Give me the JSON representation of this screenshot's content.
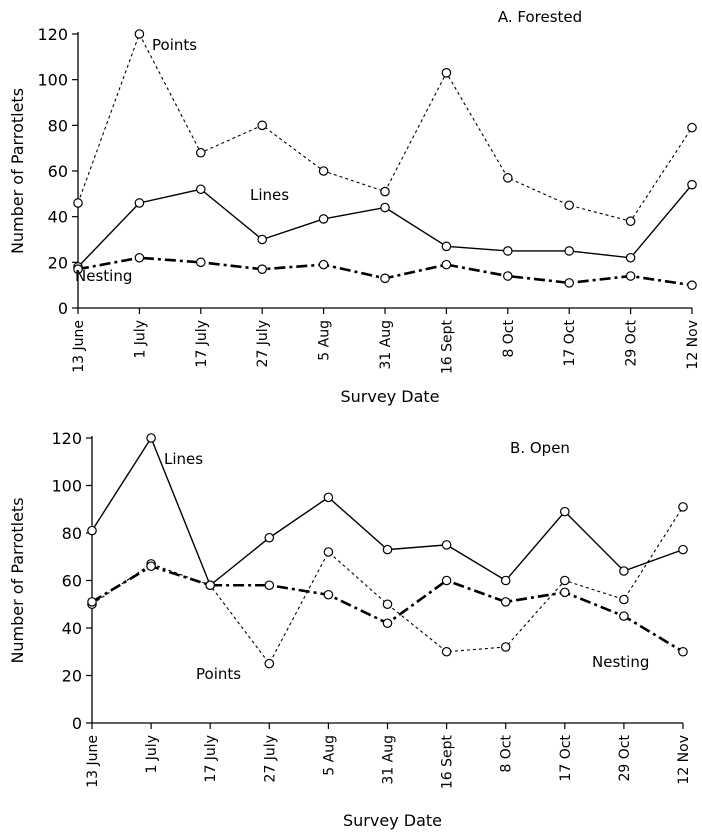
{
  "chart_data": [
    {
      "type": "line",
      "title": "A. Forested",
      "xlabel": "Survey Date",
      "ylabel": "Number of Parrotlets",
      "ylim": [
        0,
        120
      ],
      "yticks": [
        0,
        20,
        40,
        60,
        80,
        100,
        120
      ],
      "categories": [
        "13 June",
        "1 July",
        "17 July",
        "27 July",
        "5 Aug",
        "31 Aug",
        "16 Sept",
        "8 Oct",
        "17 Oct",
        "29 Oct",
        "12 Nov"
      ],
      "grid": false,
      "series": [
        {
          "name": "Points",
          "style": "dotted",
          "values": [
            46,
            120,
            68,
            80,
            60,
            51,
            103,
            57,
            45,
            38,
            79
          ]
        },
        {
          "name": "Lines",
          "style": "solid",
          "values": [
            18,
            46,
            52,
            30,
            39,
            44,
            27,
            25,
            25,
            22,
            54
          ]
        },
        {
          "name": "Nesting",
          "style": "dash-dot",
          "values": [
            17,
            22,
            20,
            17,
            19,
            13,
            19,
            14,
            11,
            14,
            10
          ]
        }
      ]
    },
    {
      "type": "line",
      "title": "B. Open",
      "xlabel": "Survey Date",
      "ylabel": "Number of Parrotlets",
      "ylim": [
        0,
        120
      ],
      "yticks": [
        0,
        20,
        40,
        60,
        80,
        100,
        120
      ],
      "categories": [
        "13 June",
        "1 July",
        "17 July",
        "27 July",
        "5 Aug",
        "31 Aug",
        "16 Sept",
        "8 Oct",
        "17 Oct",
        "29 Oct",
        "12 Nov"
      ],
      "grid": false,
      "series": [
        {
          "name": "Lines",
          "style": "solid",
          "values": [
            81,
            120,
            58,
            78,
            95,
            73,
            75,
            60,
            89,
            64,
            73
          ]
        },
        {
          "name": "Points",
          "style": "dotted",
          "values": [
            50,
            67,
            58,
            25,
            72,
            50,
            30,
            32,
            60,
            52,
            91
          ]
        },
        {
          "name": "Nesting",
          "style": "dash-dot",
          "values": [
            51,
            66,
            58,
            58,
            54,
            42,
            60,
            51,
            55,
            45,
            30
          ]
        }
      ]
    }
  ]
}
